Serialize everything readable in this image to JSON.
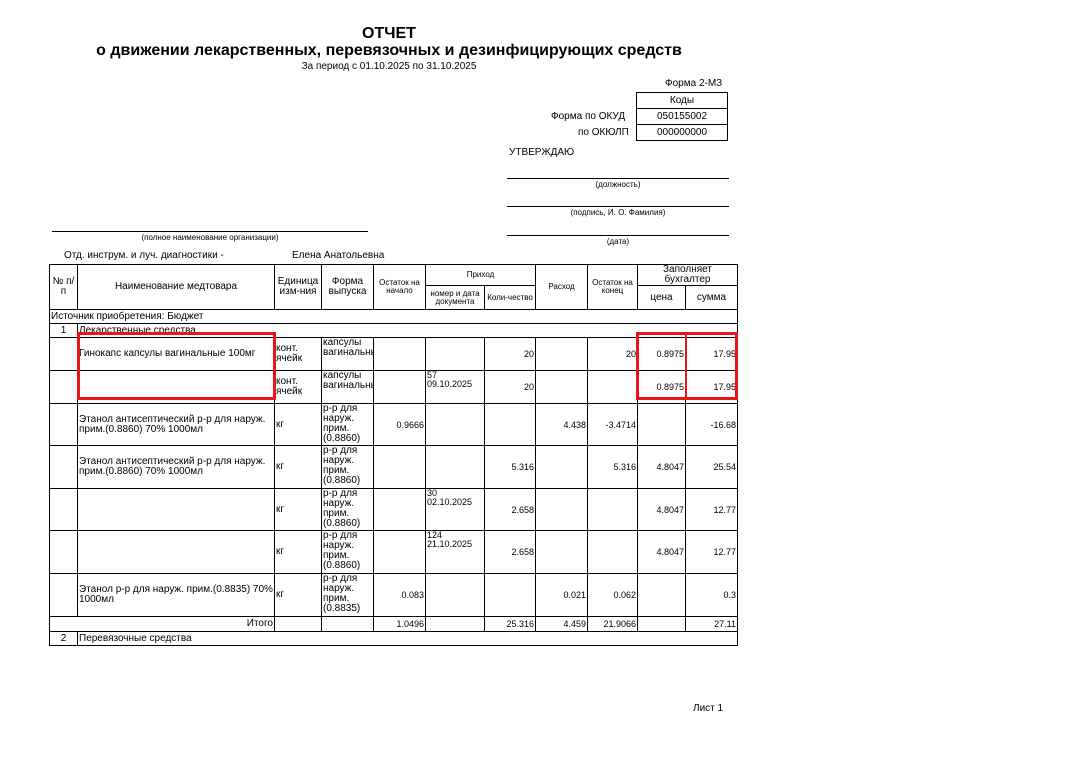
{
  "header": {
    "title": "ОТЧЕТ",
    "subtitle": "о движении лекарственных, перевязочных и дезинфицирующих средств",
    "period": "За период с 01.10.2025 по 31.10.2025",
    "form_name": "Форма 2-МЗ"
  },
  "codes": {
    "header": "Коды",
    "okud_label": "Форма по ОКУД",
    "okud_value": "050155002",
    "okulp_label": "по ОКЮЛП",
    "okulp_value": "000000000"
  },
  "approval": {
    "title": "УТВЕРЖДАЮ",
    "position_caption": "(должность)",
    "signature_caption": "(подпись, И. О. Фамилия)",
    "date_caption": "(дата)"
  },
  "organization": {
    "caption": "(полное наименование организации)",
    "department": "Отд. инструм. и луч. диагностики -",
    "person": "Елена Анатольевна"
  },
  "table_headers": {
    "num": "№ п/п",
    "name": "Наименование медтовара",
    "unit": "Единица изм-ния",
    "form": "Форма выпуска",
    "start": "Остаток на начало",
    "income": "Приход",
    "doc": "номер и дата документа",
    "qty": "Коли-чество",
    "expense": "Расход",
    "end": "Остаток на конец",
    "accountant": "Заполняет бухгалтер",
    "price": "цена",
    "sum": "сумма"
  },
  "source": "Источник приобретения: Бюджет",
  "group1": {
    "num": "1",
    "name": "Лекарственные средства"
  },
  "rows": [
    {
      "name": "Гинокапс капсулы вагинальные 100мг",
      "unit": "конт. ячейк",
      "form": "капсулы вагинальные",
      "start": "",
      "doc_no": "",
      "doc_date": "",
      "qty": "20",
      "expense": "",
      "end": "20",
      "price": "0.8975",
      "sum": "17.95"
    },
    {
      "name": "",
      "unit": "конт. ячейк",
      "form": "капсулы вагинальные",
      "start": "",
      "doc_no": "57",
      "doc_date": "09.10.2025",
      "qty": "20",
      "expense": "",
      "end": "",
      "price": "0.8975",
      "sum": "17.95"
    },
    {
      "name": "Этанол антисептический р-р для наруж. прим.(0.8860) 70% 1000мл",
      "unit": "кг",
      "form": "р-р для наруж. прим.(0.8860)",
      "start": "0.9666",
      "doc_no": "",
      "doc_date": "",
      "qty": "",
      "expense": "4.438",
      "end": "-3.4714",
      "price": "",
      "sum": "-16.68"
    },
    {
      "name": "Этанол антисептический р-р для наруж. прим.(0.8860) 70% 1000мл",
      "unit": "кг",
      "form": "р-р для наруж. прим.(0.8860)",
      "start": "",
      "doc_no": "",
      "doc_date": "",
      "qty": "5.316",
      "expense": "",
      "end": "5.316",
      "price": "4.8047",
      "sum": "25.54"
    },
    {
      "name": "",
      "unit": "кг",
      "form": "р-р для наруж. прим.(0.8860)",
      "start": "",
      "doc_no": "30",
      "doc_date": "02.10.2025",
      "qty": "2.658",
      "expense": "",
      "end": "",
      "price": "4.8047",
      "sum": "12.77"
    },
    {
      "name": "",
      "unit": "кг",
      "form": "р-р для наруж. прим.(0.8860)",
      "start": "",
      "doc_no": "124",
      "doc_date": "21.10.2025",
      "qty": "2.658",
      "expense": "",
      "end": "",
      "price": "4.8047",
      "sum": "12.77"
    },
    {
      "name": "Этанол р-р для наруж. прим.(0.8835) 70% 1000мл",
      "unit": "кг",
      "form": "р-р для наруж. прим.(0.8835)",
      "start": "0.083",
      "doc_no": "",
      "doc_date": "",
      "qty": "",
      "expense": "0.021",
      "end": "0.062",
      "price": "",
      "sum": "0.3"
    }
  ],
  "total": {
    "label": "Итого",
    "start": "1.0496",
    "qty": "25.316",
    "expense": "4.459",
    "end": "21.9066",
    "sum": "27.11"
  },
  "group2": {
    "num": "2",
    "name": "Перевязочные средства"
  },
  "footer": {
    "sheet": "Лист 1"
  },
  "highlight_color": "#e8161c"
}
